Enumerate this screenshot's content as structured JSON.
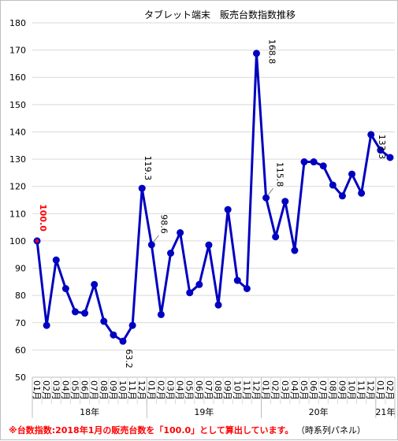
{
  "chart_data": {
    "type": "line",
    "title": "タブレット端末　販売台数指数推移",
    "ylim": [
      50,
      180
    ],
    "ytick_step": 10,
    "grid": "horizontal",
    "series_color": "#0000c0",
    "highlight_color": "#ff0000",
    "x": [
      "01月",
      "02月",
      "03月",
      "04月",
      "05月",
      "06月",
      "07月",
      "08月",
      "09月",
      "10月",
      "11月",
      "12月",
      "01月",
      "02月",
      "03月",
      "04月",
      "05月",
      "06月",
      "07月",
      "08月",
      "09月",
      "10月",
      "11月",
      "12月",
      "01月",
      "02月",
      "03月",
      "04月",
      "05月",
      "06月",
      "07月",
      "08月",
      "09月",
      "10月",
      "11月",
      "12月",
      "01月",
      "02月"
    ],
    "year_groups": [
      {
        "label": "18年",
        "start": 0,
        "end": 11
      },
      {
        "label": "19年",
        "start": 12,
        "end": 23
      },
      {
        "label": "20年",
        "start": 24,
        "end": 35
      },
      {
        "label": "21年",
        "start": 36,
        "end": 37
      }
    ],
    "values": [
      100.0,
      69,
      93,
      82.5,
      74,
      73.5,
      84,
      70.5,
      65.5,
      63.2,
      69,
      119.3,
      98.6,
      73,
      95.5,
      103,
      81,
      84,
      98.5,
      76.5,
      111.5,
      85.5,
      82.5,
      168.8,
      115.8,
      101.5,
      114.5,
      96.5,
      129,
      129,
      127.5,
      120.5,
      116.5,
      124.5,
      117.5,
      139,
      133.3,
      130.6
    ],
    "data_labels": [
      {
        "index": 0,
        "text": "100.0",
        "color": "#ff0000"
      },
      {
        "index": 9,
        "text": "63.2",
        "color": "#000000"
      },
      {
        "index": 11,
        "text": "119.3",
        "color": "#000000"
      },
      {
        "index": 12,
        "text": "98.6",
        "color": "#000000"
      },
      {
        "index": 23,
        "text": "168.8",
        "color": "#000000"
      },
      {
        "index": 24,
        "text": "115.8",
        "color": "#000000"
      },
      {
        "index": 36,
        "text": "133.3",
        "color": "#000000"
      }
    ]
  },
  "footnote": {
    "main": "※台数指数:2018年1月の販売台数を「100.0」として算出しています。",
    "note": "（時系列パネル）"
  }
}
